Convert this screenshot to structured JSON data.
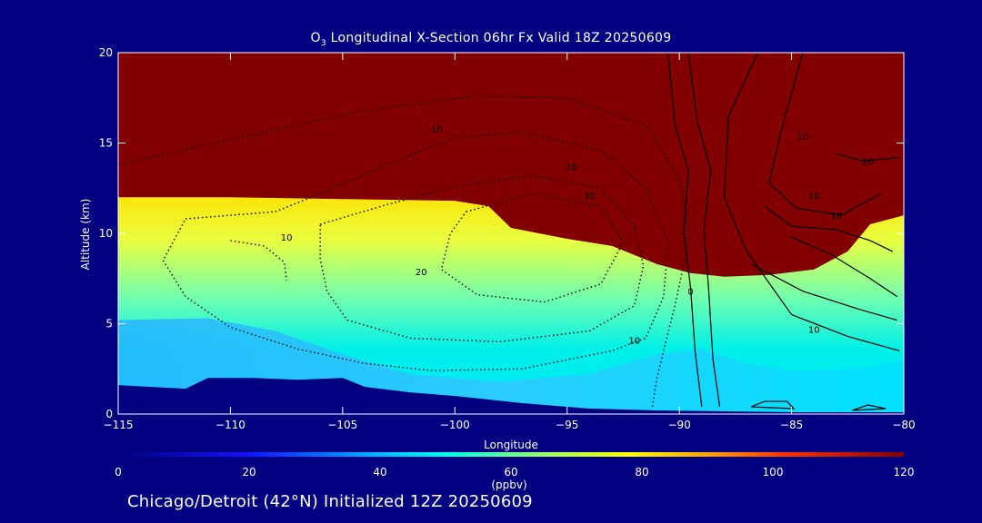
{
  "chart_data": {
    "type": "heatmap",
    "title_main": "O",
    "title_sub": "3",
    "title_rest": " Longitudinal X-Section 06hr  Fx Valid 18Z 20250609",
    "xlabel": "Longitude",
    "ylabel": "Altitude (km)",
    "xlim": [
      -115,
      -80
    ],
    "ylim": [
      0,
      20
    ],
    "xticks": [
      -115,
      -110,
      -105,
      -100,
      -95,
      -90,
      -85,
      -80
    ],
    "xtick_labels": [
      "−115",
      "−110",
      "−105",
      "−100",
      "−95",
      "−90",
      "−85",
      "−80"
    ],
    "yticks": [
      0,
      5,
      10,
      15,
      20
    ],
    "ytick_labels": [
      "0",
      "5",
      "10",
      "15",
      "20"
    ],
    "color_field": {
      "variable": "O3",
      "units": "(ppbv)",
      "range": [
        0,
        120
      ],
      "upper_boundary_km": [
        [
          -115,
          12.0
        ],
        [
          -110,
          12.0
        ],
        [
          -105,
          11.9
        ],
        [
          -100,
          11.8
        ],
        [
          -98.5,
          11.5
        ],
        [
          -97.5,
          10.3
        ],
        [
          -95,
          9.7
        ],
        [
          -93,
          9.3
        ],
        [
          -91,
          8.3
        ],
        [
          -89.5,
          7.8
        ],
        [
          -88,
          7.6
        ],
        [
          -86,
          7.7
        ],
        [
          -84,
          8.0
        ],
        [
          -82.5,
          9.0
        ],
        [
          -81.5,
          10.5
        ],
        [
          -80,
          11.0
        ]
      ],
      "terrain_km": [
        [
          -115,
          1.6
        ],
        [
          -113.5,
          1.5
        ],
        [
          -112,
          1.4
        ],
        [
          -111,
          2.0
        ],
        [
          -109,
          2.0
        ],
        [
          -107,
          1.9
        ],
        [
          -105,
          2.0
        ],
        [
          -104,
          1.5
        ],
        [
          -102,
          1.2
        ],
        [
          -100,
          1.0
        ],
        [
          -97,
          0.6
        ],
        [
          -94,
          0.3
        ],
        [
          -91,
          0.2
        ],
        [
          -88,
          0.15
        ],
        [
          -85,
          0.1
        ],
        [
          -80,
          0.1
        ]
      ]
    },
    "contour_labels": [
      {
        "text": "10",
        "x": -100.8,
        "y": 15.6
      },
      {
        "text": "20",
        "x": -94.8,
        "y": 13.5
      },
      {
        "text": "30",
        "x": -94.0,
        "y": 11.9
      },
      {
        "text": "10",
        "x": -107.5,
        "y": 9.6
      },
      {
        "text": "20",
        "x": -101.5,
        "y": 7.7
      },
      {
        "text": "10",
        "x": -92.0,
        "y": 3.9
      },
      {
        "text": "0",
        "x": -89.5,
        "y": 6.6
      },
      {
        "text": "10",
        "x": -84.5,
        "y": 15.2
      },
      {
        "text": "20",
        "x": -81.6,
        "y": 13.8
      },
      {
        "text": "10",
        "x": -84.0,
        "y": 11.9
      },
      {
        "text": "10",
        "x": -83.0,
        "y": 10.8
      },
      {
        "text": "10",
        "x": -84.0,
        "y": 4.5
      }
    ],
    "colorbar": {
      "ticks": [
        0,
        20,
        40,
        60,
        80,
        100,
        120
      ],
      "tick_labels": [
        "0",
        "20",
        "40",
        "60",
        "80",
        "100",
        "120"
      ]
    }
  },
  "footer_text": "Chicago/Detroit (42°N) Initialized 12Z 20250609"
}
